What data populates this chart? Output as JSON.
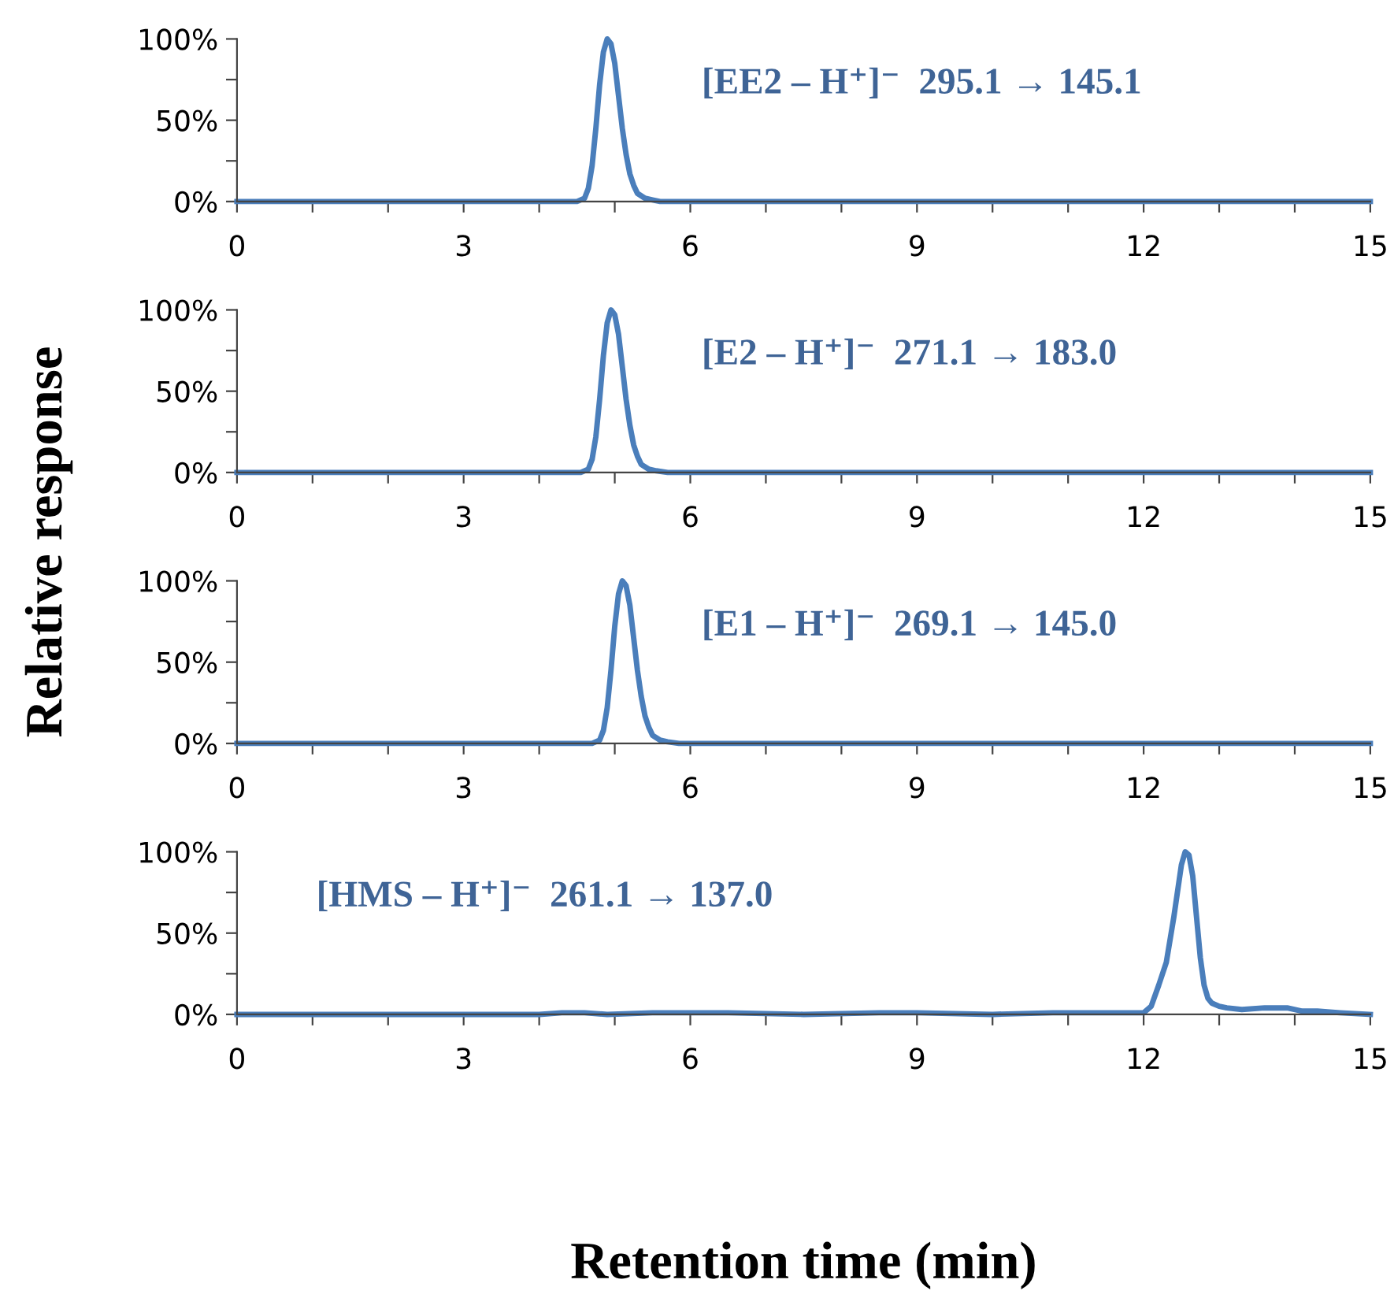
{
  "chart_data": [
    {
      "type": "line",
      "ylabel": "Relative response",
      "annotations": [
        "[EE2 – H⁺]⁻  295.1 → 145.1"
      ],
      "xlim": [
        0,
        15
      ],
      "ylim": [
        0,
        100
      ],
      "xticks": [
        0,
        {
          "value": 1,
          "label": null
        },
        {
          "value": 2,
          "label": null
        },
        3,
        {
          "value": 4,
          "label": null
        },
        {
          "value": 5,
          "label": null
        },
        6,
        {
          "value": 7,
          "label": null
        },
        {
          "value": 8,
          "label": null
        },
        9,
        {
          "value": 10,
          "label": null
        },
        {
          "value": 11,
          "label": null
        },
        12,
        {
          "value": 13,
          "label": null
        },
        {
          "value": 14,
          "label": null
        },
        15
      ],
      "yticks": [
        {
          "value": 0,
          "label": "0%"
        },
        {
          "value": 25,
          "label": null
        },
        {
          "value": 50,
          "label": "50%"
        },
        {
          "value": 75,
          "label": null
        },
        {
          "value": 100,
          "label": "100%"
        }
      ],
      "grid": false,
      "legend": false,
      "marker": "none",
      "line_style": "solid",
      "series": [
        {
          "color": "#4a7ebb",
          "x": [
            0,
            1,
            2,
            3,
            4,
            4.5,
            4.6,
            4.65,
            4.7,
            4.75,
            4.8,
            4.85,
            4.9,
            4.95,
            5.0,
            5.05,
            5.1,
            5.15,
            5.2,
            5.25,
            5.3,
            5.4,
            5.5,
            5.6,
            6,
            8,
            10,
            12,
            15
          ],
          "values": [
            0,
            0,
            0,
            0,
            0,
            0,
            2,
            8,
            22,
            45,
            72,
            92,
            100,
            97,
            85,
            65,
            45,
            29,
            17,
            10,
            5,
            2,
            1,
            0,
            0,
            0,
            0,
            0,
            0
          ]
        }
      ]
    },
    {
      "type": "line",
      "annotations": [
        "[E2 – H⁺]⁻  271.1 → 183.0"
      ],
      "xlim": [
        0,
        15
      ],
      "ylim": [
        0,
        100
      ],
      "xticks": [
        0,
        {
          "value": 1,
          "label": null
        },
        {
          "value": 2,
          "label": null
        },
        3,
        {
          "value": 4,
          "label": null
        },
        {
          "value": 5,
          "label": null
        },
        6,
        {
          "value": 7,
          "label": null
        },
        {
          "value": 8,
          "label": null
        },
        9,
        {
          "value": 10,
          "label": null
        },
        {
          "value": 11,
          "label": null
        },
        12,
        {
          "value": 13,
          "label": null
        },
        {
          "value": 14,
          "label": null
        },
        15
      ],
      "yticks": [
        {
          "value": 0,
          "label": "0%"
        },
        {
          "value": 25,
          "label": null
        },
        {
          "value": 50,
          "label": "50%"
        },
        {
          "value": 75,
          "label": null
        },
        {
          "value": 100,
          "label": "100%"
        }
      ],
      "grid": false,
      "legend": false,
      "marker": "none",
      "line_style": "solid",
      "series": [
        {
          "color": "#4a7ebb",
          "x": [
            0,
            1,
            2,
            3,
            4,
            4.55,
            4.65,
            4.7,
            4.75,
            4.8,
            4.85,
            4.9,
            4.95,
            5.0,
            5.05,
            5.1,
            5.15,
            5.2,
            5.25,
            5.3,
            5.35,
            5.45,
            5.55,
            5.7,
            6,
            8,
            10,
            12,
            15
          ],
          "values": [
            0,
            0,
            0,
            0,
            0,
            0,
            2,
            8,
            22,
            45,
            72,
            92,
            100,
            97,
            85,
            65,
            45,
            29,
            17,
            10,
            5,
            2,
            1,
            0,
            0,
            0,
            0,
            0,
            0
          ]
        }
      ]
    },
    {
      "type": "line",
      "annotations": [
        "[E1 – H⁺]⁻  269.1 → 145.0"
      ],
      "xlim": [
        0,
        15
      ],
      "ylim": [
        0,
        100
      ],
      "xticks": [
        0,
        {
          "value": 1,
          "label": null
        },
        {
          "value": 2,
          "label": null
        },
        3,
        {
          "value": 4,
          "label": null
        },
        {
          "value": 5,
          "label": null
        },
        6,
        {
          "value": 7,
          "label": null
        },
        {
          "value": 8,
          "label": null
        },
        9,
        {
          "value": 10,
          "label": null
        },
        {
          "value": 11,
          "label": null
        },
        12,
        {
          "value": 13,
          "label": null
        },
        {
          "value": 14,
          "label": null
        },
        15
      ],
      "yticks": [
        {
          "value": 0,
          "label": "0%"
        },
        {
          "value": 25,
          "label": null
        },
        {
          "value": 50,
          "label": "50%"
        },
        {
          "value": 75,
          "label": null
        },
        {
          "value": 100,
          "label": "100%"
        }
      ],
      "grid": false,
      "legend": false,
      "marker": "none",
      "line_style": "solid",
      "series": [
        {
          "color": "#4a7ebb",
          "x": [
            0,
            1,
            2,
            3,
            4,
            4.7,
            4.8,
            4.85,
            4.9,
            4.95,
            5.0,
            5.05,
            5.1,
            5.15,
            5.2,
            5.25,
            5.3,
            5.35,
            5.4,
            5.45,
            5.5,
            5.6,
            5.7,
            5.85,
            6,
            8,
            10,
            12,
            15
          ],
          "values": [
            0,
            0,
            0,
            0,
            0,
            0,
            2,
            8,
            22,
            45,
            72,
            92,
            100,
            97,
            85,
            65,
            45,
            29,
            17,
            10,
            5,
            2,
            1,
            0,
            0,
            0,
            0,
            0,
            0
          ]
        }
      ]
    },
    {
      "type": "line",
      "xlabel": "Retention time (min)",
      "annotations": [
        "[HMS – H⁺]⁻  261.1 → 137.0"
      ],
      "xlim": [
        0,
        15
      ],
      "ylim": [
        0,
        100
      ],
      "xticks": [
        0,
        {
          "value": 1,
          "label": null
        },
        {
          "value": 2,
          "label": null
        },
        3,
        {
          "value": 4,
          "label": null
        },
        {
          "value": 5,
          "label": null
        },
        6,
        {
          "value": 7,
          "label": null
        },
        {
          "value": 8,
          "label": null
        },
        9,
        {
          "value": 10,
          "label": null
        },
        {
          "value": 11,
          "label": null
        },
        12,
        {
          "value": 13,
          "label": null
        },
        {
          "value": 14,
          "label": null
        },
        15
      ],
      "yticks": [
        {
          "value": 0,
          "label": "0%"
        },
        {
          "value": 25,
          "label": null
        },
        {
          "value": 50,
          "label": "50%"
        },
        {
          "value": 75,
          "label": null
        },
        {
          "value": 100,
          "label": "100%"
        }
      ],
      "grid": false,
      "legend": false,
      "marker": "none",
      "line_style": "solid",
      "series": [
        {
          "color": "#4a7ebb",
          "x": [
            0,
            1,
            2,
            3,
            4,
            4.3,
            4.6,
            4.9,
            5.5,
            6.5,
            7.5,
            8.5,
            9,
            10,
            10.8,
            11.2,
            11.6,
            12.0,
            12.1,
            12.2,
            12.3,
            12.4,
            12.5,
            12.55,
            12.6,
            12.65,
            12.7,
            12.75,
            12.8,
            12.85,
            12.9,
            13.0,
            13.1,
            13.3,
            13.6,
            13.9,
            14.1,
            14.3,
            14.6,
            15
          ],
          "values": [
            0,
            0,
            0,
            0,
            0,
            1,
            1,
            0,
            1,
            1,
            0,
            1,
            1,
            0,
            1,
            1,
            1,
            1,
            5,
            18,
            32,
            60,
            92,
            100,
            98,
            85,
            60,
            35,
            18,
            10,
            7,
            5,
            4,
            3,
            4,
            4,
            2,
            2,
            1,
            0
          ]
        }
      ]
    }
  ]
}
